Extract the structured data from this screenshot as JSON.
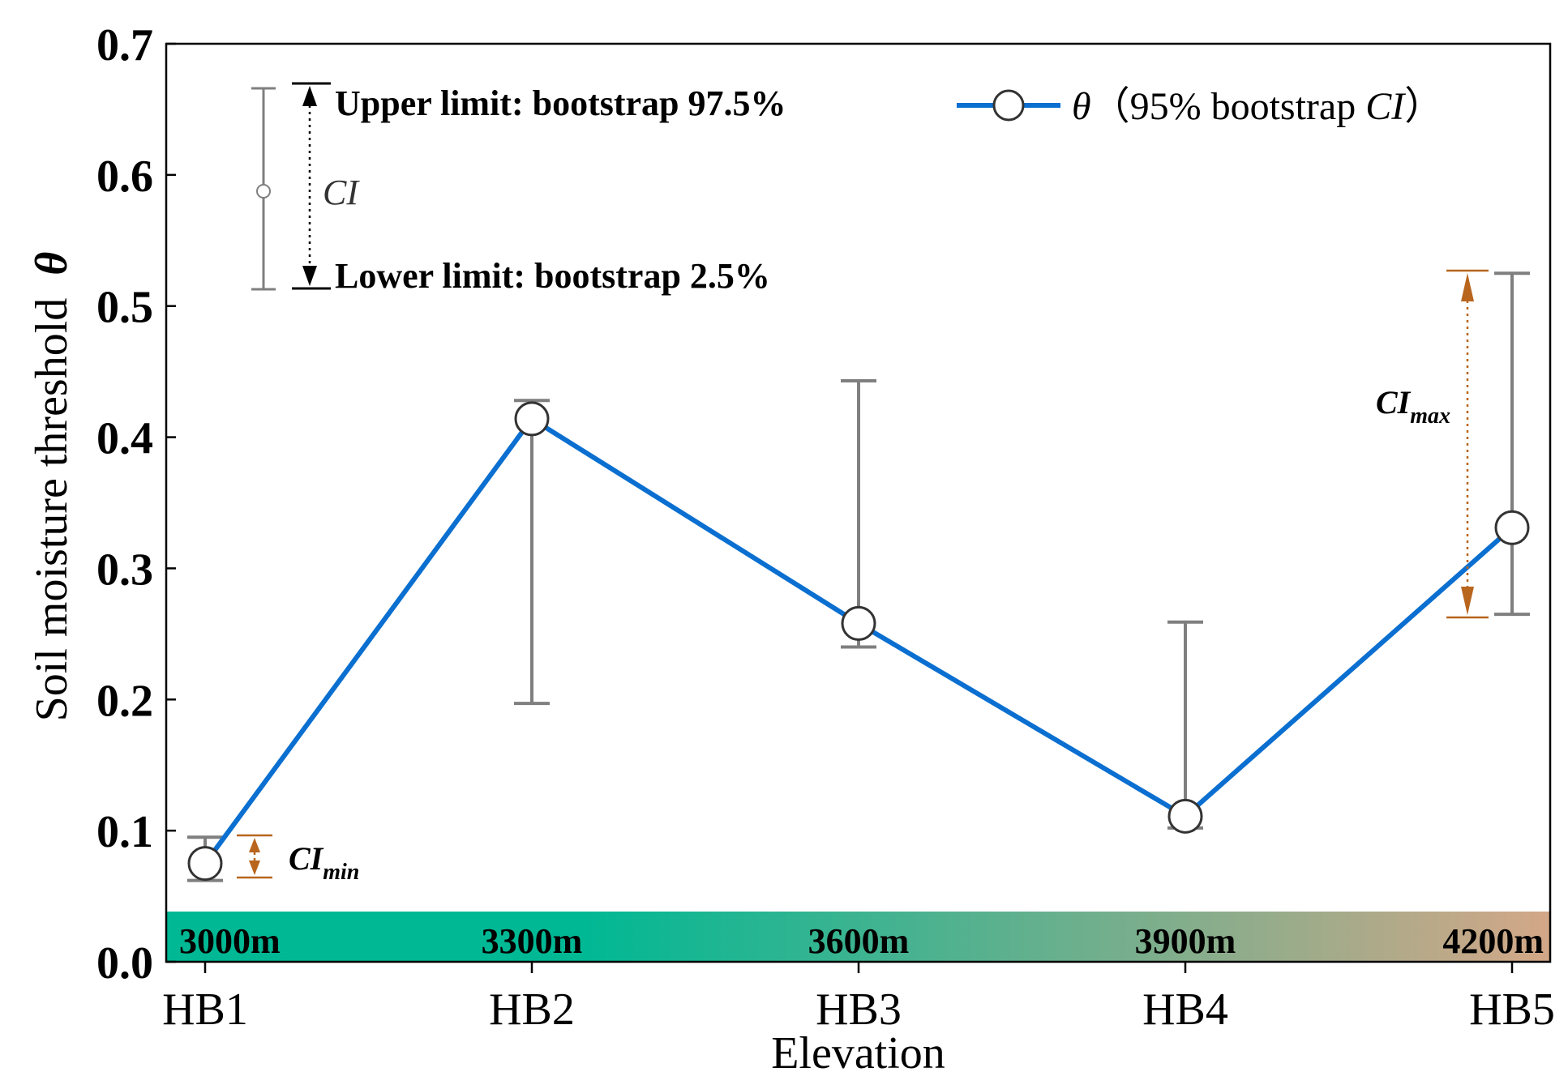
{
  "chart_data": {
    "type": "line",
    "categories": [
      "HB1",
      "HB2",
      "HB3",
      "HB4",
      "HB5"
    ],
    "elevations": [
      "3000m",
      "3300m",
      "3600m",
      "3900m",
      "4200m"
    ],
    "series": [
      {
        "name": "θ（95% bootstrap CI）",
        "values": [
          0.075,
          0.414,
          0.258,
          0.111,
          0.331
        ],
        "ci_lower": [
          0.062,
          0.197,
          0.24,
          0.102,
          0.265
        ],
        "ci_upper": [
          0.095,
          0.428,
          0.443,
          0.259,
          0.525
        ]
      }
    ],
    "xlabel": "Elevation",
    "ylabel": "Soil moisture threshold",
    "ylabel_symbol": "θ",
    "ylim": [
      0.0,
      0.7
    ],
    "yticks": [
      "0.0",
      "0.1",
      "0.2",
      "0.3",
      "0.4",
      "0.5",
      "0.6",
      "0.7"
    ],
    "legend": {
      "theta_symbol": "θ",
      "text_before": "（95% bootstrap ",
      "text_italic": "CI",
      "text_after": "）",
      "placement": "top-right"
    },
    "ci_key": {
      "upper": "Upper limit: bootstrap 97.5%",
      "lower": "Lower limit: bootstrap 2.5%",
      "label": "CI"
    },
    "annotations": {
      "ci_min": {
        "main": "CI",
        "sub": "min"
      },
      "ci_max": {
        "main": "CI",
        "sub": "max"
      }
    },
    "colors": {
      "line": "#0a6fd0",
      "errorbar": "#7f7f7f",
      "annotation": "#b8651d",
      "band_start": "#00b894",
      "band_end": "#d3a787"
    },
    "grid": false
  }
}
